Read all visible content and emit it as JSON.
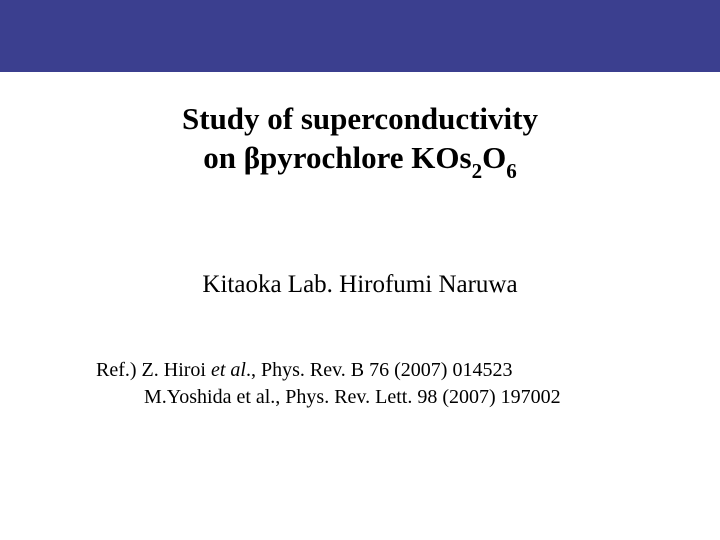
{
  "colors": {
    "banner": "#3b3f8f",
    "background": "#ffffff",
    "text": "#000000"
  },
  "title": {
    "line1": "Study of superconductivity",
    "line2_pre": "on βpyrochlore KOs",
    "line2_sub1": "2",
    "line2_mid": "O",
    "line2_sub2": "6",
    "fontsize": 31,
    "fontweight": "bold"
  },
  "author": {
    "text": "Kitaoka Lab.  Hirofumi Naruwa",
    "fontsize": 25
  },
  "refs": {
    "prefix": "Ref.) ",
    "r1_auth": "Z. Hiroi ",
    "r1_etal": "et al",
    "r1_rest": "., Phys. Rev. B 76 (2007) 014523",
    "r2": "M.Yoshida et al., Phys. Rev. Lett. 98 (2007) 197002",
    "fontsize": 20
  }
}
